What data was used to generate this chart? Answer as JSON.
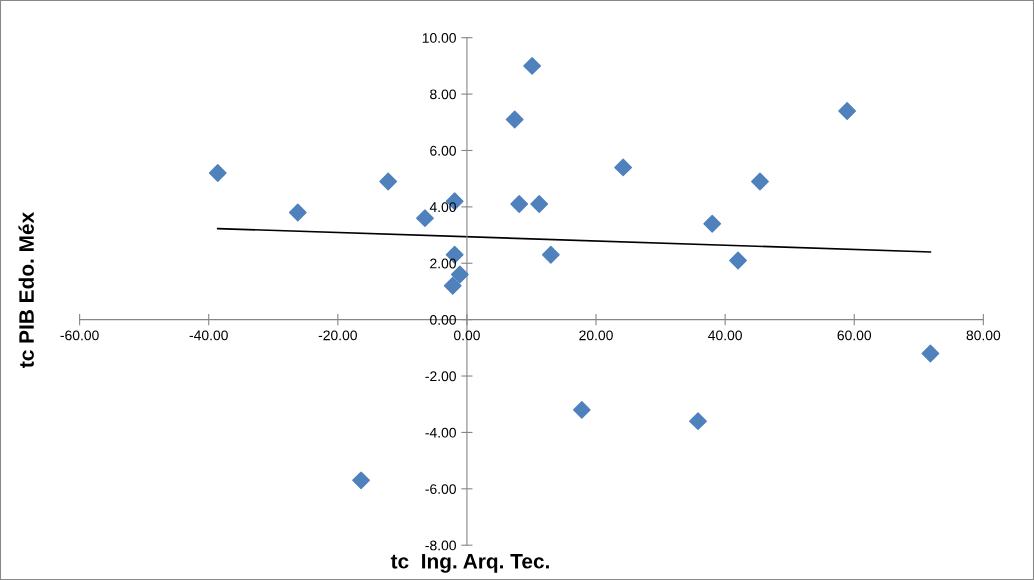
{
  "chart_data": {
    "type": "scatter",
    "xlabel": "tc  Ing. Arq. Tec.",
    "ylabel": "tc PIB Edo. Méx",
    "marker": "diamond",
    "grid": false,
    "legend": false,
    "xlim": [
      -60,
      80
    ],
    "ylim": [
      -8,
      10
    ],
    "xticks": [
      {
        "value": -60,
        "label": "-60.00"
      },
      {
        "value": -40,
        "label": "-40.00"
      },
      {
        "value": -20,
        "label": "-20.00"
      },
      {
        "value": 0,
        "label": "0.00"
      },
      {
        "value": 20,
        "label": "20.00"
      },
      {
        "value": 40,
        "label": "40.00"
      },
      {
        "value": 60,
        "label": "60.00"
      },
      {
        "value": 80,
        "label": "80.00"
      }
    ],
    "yticks": [
      {
        "value": -8,
        "label": "-8.00"
      },
      {
        "value": -6,
        "label": "-6.00"
      },
      {
        "value": -4,
        "label": "-4.00"
      },
      {
        "value": -2,
        "label": "-2.00"
      },
      {
        "value": 0,
        "label": "0.00"
      },
      {
        "value": 2,
        "label": "2.00"
      },
      {
        "value": 4,
        "label": "4.00"
      },
      {
        "value": 6,
        "label": "6.00"
      },
      {
        "value": 8,
        "label": "8.00"
      },
      {
        "value": 10,
        "label": "10.00"
      }
    ],
    "series": [
      {
        "color": "#4f81bd",
        "x": [
          -38.6,
          -26.2,
          -12.2,
          -6.5,
          -1.9,
          -1.9,
          -2.2,
          -1.1,
          -16.4,
          7.4,
          10.1,
          8.1,
          11.2,
          13.0,
          24.2,
          17.8,
          35.8,
          38.0,
          42.0,
          45.4,
          58.9,
          71.8
        ],
        "values": [
          5.2,
          3.8,
          4.9,
          3.6,
          4.2,
          2.3,
          1.2,
          1.6,
          -5.7,
          7.1,
          9.0,
          4.1,
          4.1,
          2.3,
          5.4,
          -3.2,
          -3.6,
          3.4,
          2.1,
          4.9,
          7.4,
          -1.2
        ]
      },
      {
        "type": "line",
        "color": "#000000",
        "marker": "none",
        "x": [
          -38.6,
          71.8
        ],
        "values": [
          3.23,
          2.4
        ]
      }
    ]
  }
}
